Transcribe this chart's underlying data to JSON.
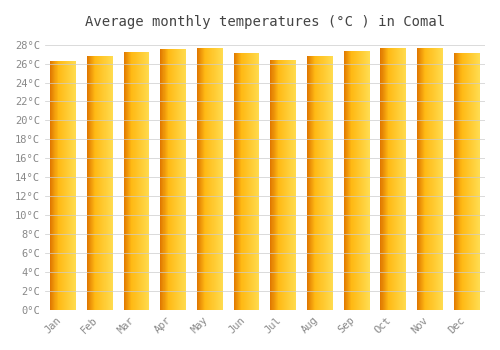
{
  "title": "Average monthly temperatures (°C ) in Comal",
  "months": [
    "Jan",
    "Feb",
    "Mar",
    "Apr",
    "May",
    "Jun",
    "Jul",
    "Aug",
    "Sep",
    "Oct",
    "Nov",
    "Dec"
  ],
  "values": [
    26.3,
    26.8,
    27.2,
    27.5,
    27.7,
    27.1,
    26.4,
    26.8,
    27.3,
    27.7,
    27.6,
    27.1
  ],
  "bar_color_left": "#E07800",
  "bar_color_mid": "#FFB800",
  "bar_color_right": "#FFD940",
  "background_color": "#FFFFFF",
  "grid_color": "#CCCCCC",
  "ylim": [
    0,
    28
  ],
  "ytick_step": 2,
  "title_fontsize": 10,
  "tick_fontsize": 7.5,
  "title_color": "#444444",
  "tick_color": "#888888",
  "bar_width": 0.7,
  "gradient_steps": 50
}
